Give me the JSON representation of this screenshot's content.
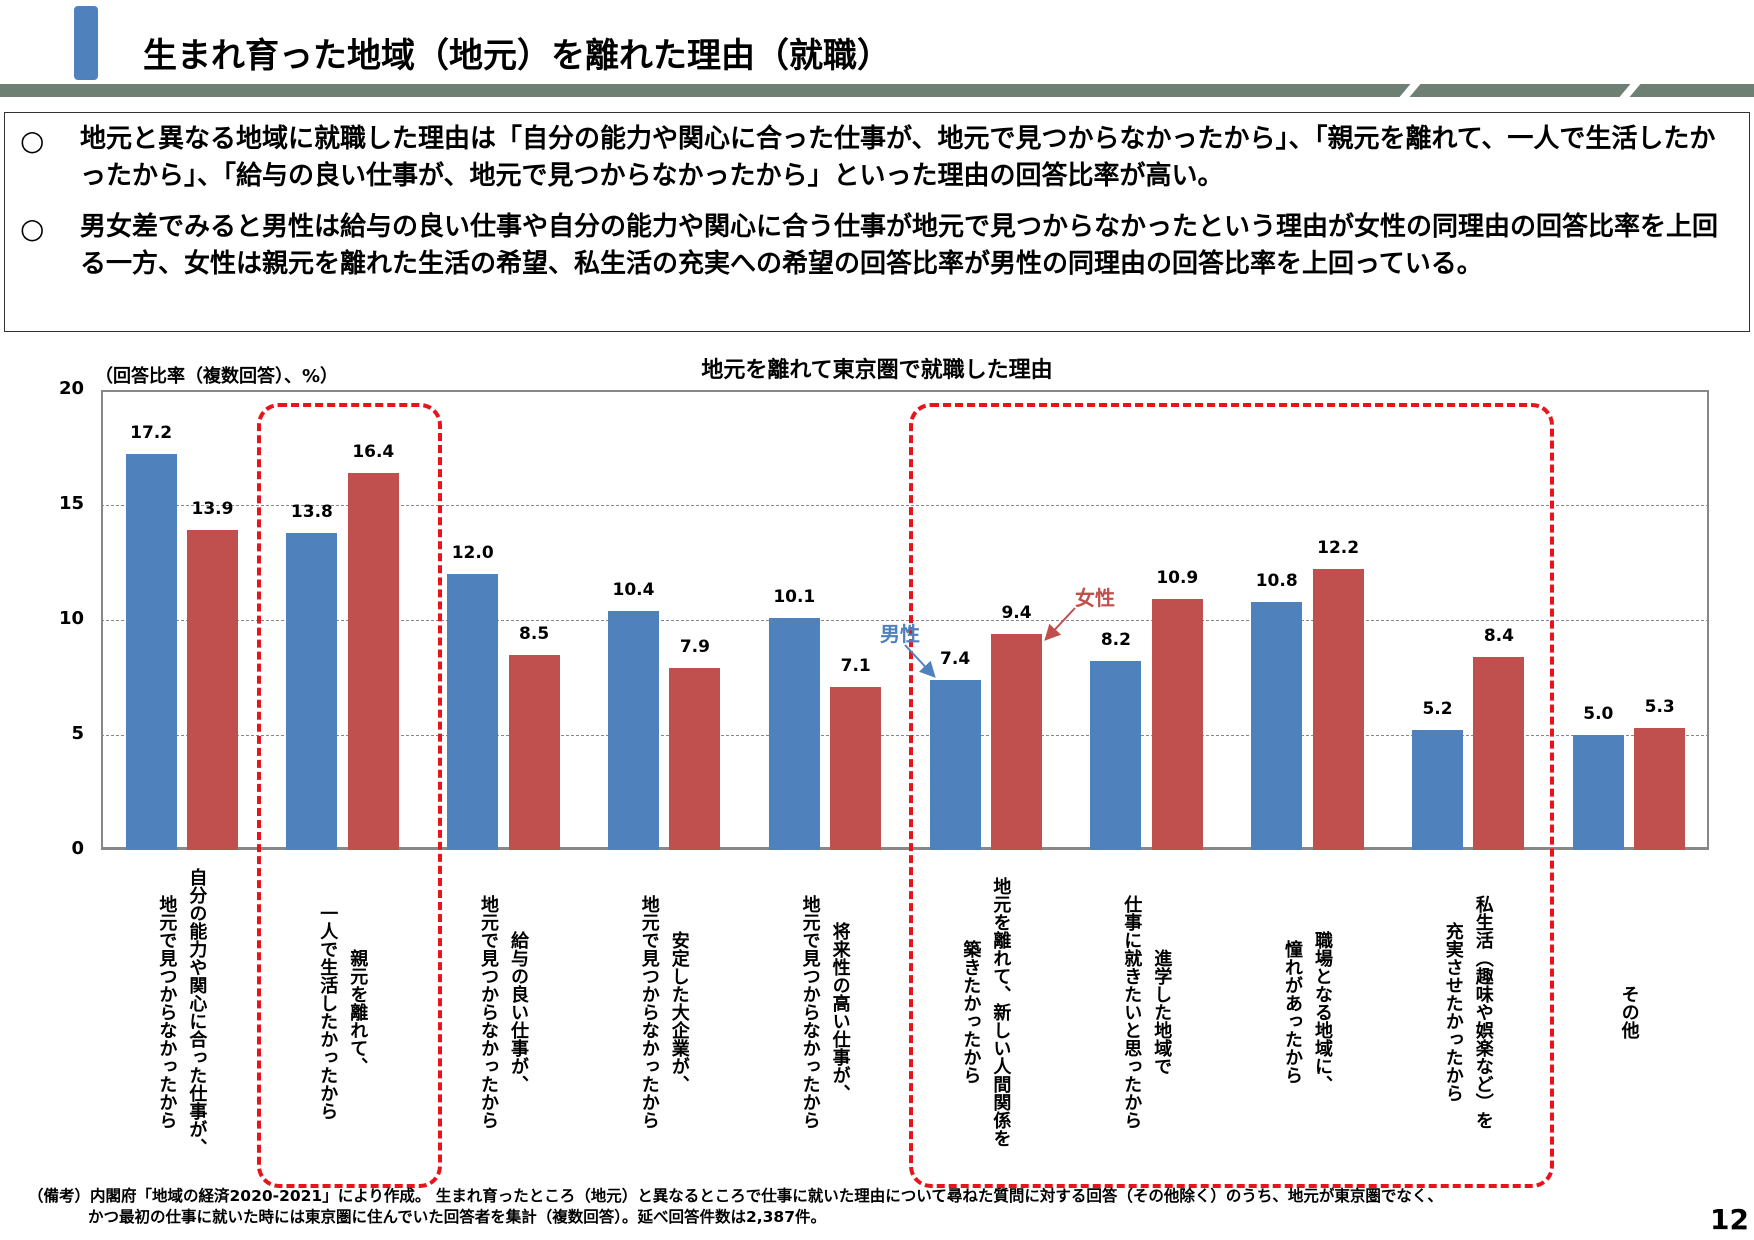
{
  "header": {
    "title": "生まれ育った地域（地元）を離れた理由（就職）"
  },
  "summary": {
    "bullet_symbol": "○",
    "points": [
      "地元と異なる地域に就職した理由は「自分の能力や関心に合った仕事が、地元で見つからなかったから」、「親元を離れて、一人で生活したかったから」、「給与の良い仕事が、地元で見つからなかったから」といった理由の回答比率が高い。",
      "男女差でみると男性は給与の良い仕事や自分の能力や関心に合う仕事が地元で見つからなかったという理由が女性の同理由の回答比率を上回る一方、女性は親元を離れた生活の希望、私生活の充実への希望の回答比率が男性の同理由の回答比率を上回っている。"
    ]
  },
  "chart_data": {
    "type": "bar",
    "title": "地元を離れて東京圏で就職した理由",
    "ylabel": "（回答比率（複数回答）、%）",
    "ylim": [
      0,
      20
    ],
    "yticks": [
      "0",
      "5",
      "10",
      "15",
      "20"
    ],
    "grid": true,
    "colors": {
      "male": "#4F81BD",
      "female": "#C0504D",
      "highlight": "#E8141C"
    },
    "categories": [
      [
        "自分の能力や関心に合った仕事が、",
        "地元で見つからなかったから"
      ],
      [
        "親元を離れて、",
        "一人で生活したかったから"
      ],
      [
        "給与の良い仕事が、",
        "地元で見つからなかったから"
      ],
      [
        "安定した大企業が、",
        "地元で見つからなかったから"
      ],
      [
        "将来性の高い仕事が、",
        "地元で見つからなかったから"
      ],
      [
        "地元を離れて、新しい人間関係を",
        "築きたかったから"
      ],
      [
        "進学した地域で",
        "仕事に就きたいと思ったから"
      ],
      [
        "職場となる地域に、",
        "憧れがあったから"
      ],
      [
        "私生活（趣味や娯楽など）を",
        "充実させたかったから"
      ],
      [
        "その他"
      ]
    ],
    "series": [
      {
        "name": "男性",
        "values": [
          17.2,
          13.8,
          12.0,
          10.4,
          10.1,
          7.4,
          8.2,
          10.8,
          5.2,
          5.0
        ]
      },
      {
        "name": "女性",
        "values": [
          13.9,
          16.4,
          8.5,
          7.9,
          7.1,
          9.4,
          10.9,
          12.2,
          8.4,
          5.3
        ]
      }
    ],
    "data_labels": [
      [
        "17.2",
        "13.8",
        "12.0",
        "10.4",
        "10.1",
        "7.4",
        "8.2",
        "10.8",
        "5.2",
        "5.0"
      ],
      [
        "13.9",
        "16.4",
        "8.5",
        "7.9",
        "7.1",
        "9.4",
        "10.9",
        "12.2",
        "8.4",
        "5.3"
      ]
    ],
    "highlighted_groups": [
      [
        2,
        2
      ],
      [
        6,
        9
      ]
    ]
  },
  "footnotes": [
    "（備考）内閣府「地域の経済2020-2021」により作成。 生まれ育ったところ（地元）と異なるところで仕事に就いた理由について尋ねた質問に対する回答（その他除く）のうち、地元が東京圏でなく、",
    "かつ最初の仕事に就いた時には東京圏に住んでいた回答者を集計（複数回答）。延べ回答件数は2,387件。"
  ],
  "page_number": "12"
}
